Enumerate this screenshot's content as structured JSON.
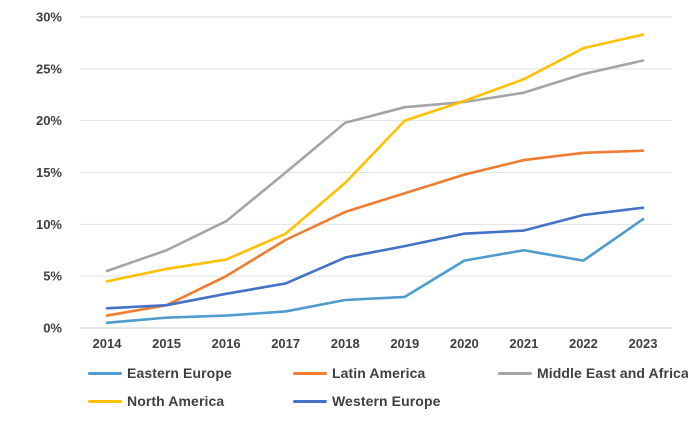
{
  "chart_data": {
    "type": "line",
    "title": "",
    "xlabel": "",
    "ylabel": "",
    "x": [
      "2014",
      "2015",
      "2016",
      "2017",
      "2018",
      "2019",
      "2020",
      "2021",
      "2022",
      "2023"
    ],
    "series": [
      {
        "name": "Eastern Europe",
        "color": "#4E9BCD",
        "values": [
          0.5,
          1.0,
          1.2,
          1.6,
          2.7,
          3.0,
          6.5,
          7.5,
          6.5,
          10.5
        ]
      },
      {
        "name": "Latin America",
        "color": "#ED7D31",
        "values": [
          1.2,
          2.2,
          5.0,
          8.5,
          11.2,
          13.0,
          14.8,
          16.2,
          16.9,
          17.1
        ]
      },
      {
        "name": "Middle East and Africa",
        "color": "#A5A5A5",
        "values": [
          5.5,
          7.5,
          10.3,
          15.0,
          19.8,
          21.3,
          21.8,
          22.7,
          24.5,
          25.8
        ]
      },
      {
        "name": "North America",
        "color": "#FFC000",
        "values": [
          4.5,
          5.7,
          6.6,
          9.1,
          14.0,
          20.0,
          21.9,
          24.0,
          27.0,
          28.3
        ]
      },
      {
        "name": "Western Europe",
        "color": "#4472C4",
        "values": [
          1.9,
          2.2,
          3.3,
          4.3,
          6.8,
          7.9,
          9.1,
          9.4,
          10.9,
          11.6
        ]
      }
    ],
    "ylim": [
      0,
      30
    ],
    "ytick_step": 5,
    "ytick_labels": [
      "0%",
      "5%",
      "10%",
      "15%",
      "20%",
      "25%",
      "30%"
    ],
    "grid": true,
    "gridline_color": "#e2e2e2",
    "axis_line_color": "#c9c9c9",
    "tick_label_color": "#3f3f3f",
    "legend_position": "bottom",
    "legend_order": [
      "Eastern Europe",
      "Latin America",
      "Middle East and Africa",
      "North America",
      "Western Europe"
    ]
  }
}
